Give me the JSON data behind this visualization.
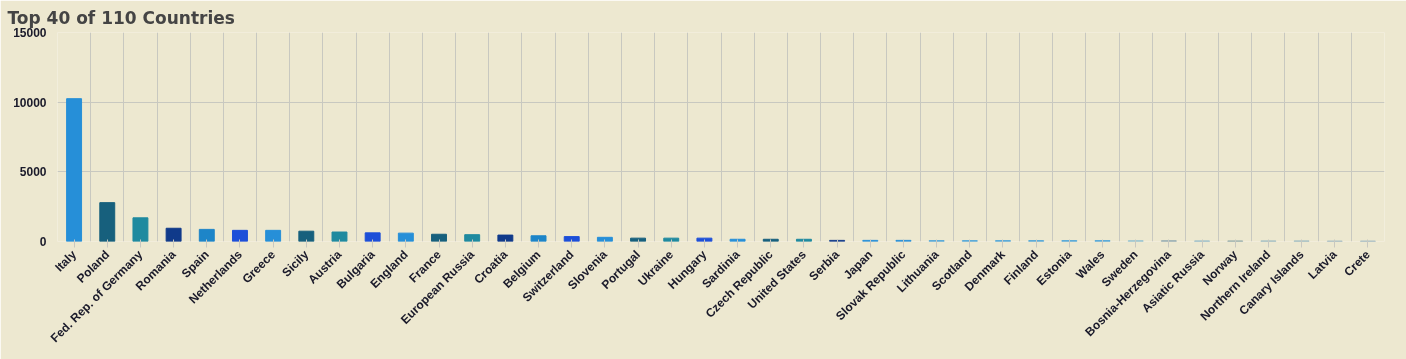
{
  "chart_data": {
    "type": "bar",
    "title": "Top 40 of 110 Countries",
    "categories": [
      "Italy",
      "Poland",
      "Fed. Rep. of Germany",
      "Romania",
      "Spain",
      "Netherlands",
      "Greece",
      "Sicily",
      "Austria",
      "Bulgaria",
      "England",
      "France",
      "European Russia",
      "Croatia",
      "Belgium",
      "Switzerland",
      "Slovenia",
      "Portugal",
      "Ukraine",
      "Hungary",
      "Sardinia",
      "Czech Republic",
      "United States",
      "Serbia",
      "Japan",
      "Slovak Republic",
      "Lithuania",
      "Scotland",
      "Denmark",
      "Finland",
      "Estonia",
      "Wales",
      "Sweden",
      "Bosnia-Herzegovina",
      "Asiatic Russia",
      "Norway",
      "Northern Ireland",
      "Canary Islands",
      "Latvia",
      "Crete"
    ],
    "values": [
      10250,
      2790,
      1700,
      950,
      870,
      800,
      800,
      740,
      680,
      620,
      600,
      520,
      490,
      460,
      410,
      350,
      300,
      240,
      240,
      240,
      160,
      160,
      160,
      80,
      80,
      80,
      60,
      60,
      60,
      60,
      60,
      60,
      50,
      50,
      40,
      40,
      40,
      40,
      30,
      30
    ],
    "colors": [
      "#268fd8",
      "#17607d",
      "#1f8a9f",
      "#103a8a",
      "#1d85c8",
      "#1d4fd8",
      "#268fd8",
      "#17607d",
      "#1f8a9f",
      "#1d4fd8",
      "#268fd8",
      "#17607d",
      "#1f8a9f",
      "#103a8a",
      "#1d85c8",
      "#1d4fd8",
      "#268fd8",
      "#17607d",
      "#1f8a9f",
      "#1d4fd8",
      "#268fd8",
      "#17607d",
      "#1f8a9f",
      "#103a8a",
      "#268fd8",
      "#268fd8",
      "#4aa3d8",
      "#4aa3d8",
      "#4aa3d8",
      "#4aa3d8",
      "#4aa3d8",
      "#4aa3d8",
      "#8fbfd0",
      "#8fa8b0",
      "#8fb8c8",
      "#90a8a8",
      "#98b8c0",
      "#98b8c0",
      "#a0b8c0",
      "#a0b8c0"
    ],
    "ylim": [
      0,
      15000
    ],
    "yticks": [
      0,
      5000,
      10000,
      15000
    ],
    "grid": true
  }
}
